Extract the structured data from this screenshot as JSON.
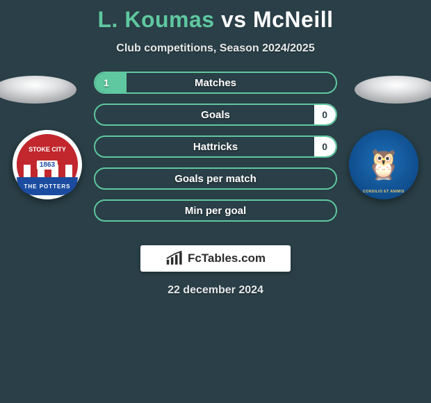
{
  "title": {
    "player1": "L. Koumas",
    "vs": "vs",
    "player2": "McNeill"
  },
  "subtitle": "Club competitions, Season 2024/2025",
  "colors": {
    "accent": "#5fc8a0",
    "background": "#2a3f47",
    "bar_border": "#5fc8a0",
    "fill_left": "#5fc8a0",
    "fill_right": "#ffffff"
  },
  "crest_left": {
    "top_text": "STOKE CITY",
    "year": "1863",
    "bottom_text": "THE POTTERS",
    "stripe_red": "#c1272d",
    "blue": "#1b4ca0"
  },
  "crest_right": {
    "text": "CONSILIO ET ANIMIS",
    "bg_inner": "#1e6fb8",
    "bg_outer": "#0a3a6c"
  },
  "stats": [
    {
      "label": "Matches",
      "left_val": "1",
      "right_val": "",
      "left_pct": 13,
      "right_pct": 0
    },
    {
      "label": "Goals",
      "left_val": "",
      "right_val": "0",
      "left_pct": 0,
      "right_pct": 9
    },
    {
      "label": "Hattricks",
      "left_val": "",
      "right_val": "0",
      "left_pct": 0,
      "right_pct": 9
    },
    {
      "label": "Goals per match",
      "left_val": "",
      "right_val": "",
      "left_pct": 0,
      "right_pct": 0
    },
    {
      "label": "Min per goal",
      "left_val": "",
      "right_val": "",
      "left_pct": 0,
      "right_pct": 0
    }
  ],
  "branding": "FcTables.com",
  "date": "22 december 2024"
}
